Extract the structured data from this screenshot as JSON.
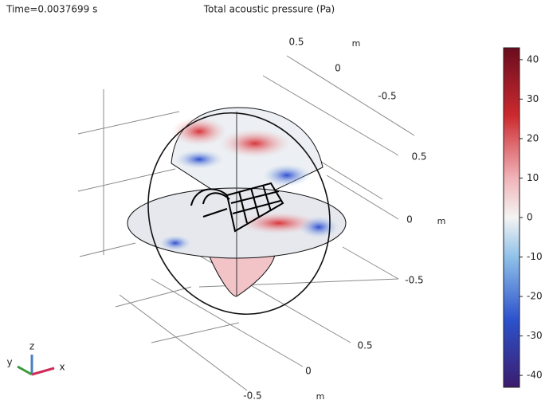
{
  "header": {
    "time": "Time=0.0037699 s",
    "title": "Total acoustic pressure (Pa)"
  },
  "axis_labels": [
    "0.5",
    "m",
    "0",
    "-0.5",
    "0.5",
    "0",
    "m",
    "-0.5",
    "0.5",
    "0",
    "-0.5",
    "m"
  ],
  "triad": {
    "z": "z",
    "y": "y",
    "x": "x"
  },
  "colorbar": {
    "range": [
      -43,
      43
    ],
    "ticks": [
      -40,
      -30,
      -20,
      -10,
      0,
      10,
      20,
      30,
      40
    ]
  }
}
